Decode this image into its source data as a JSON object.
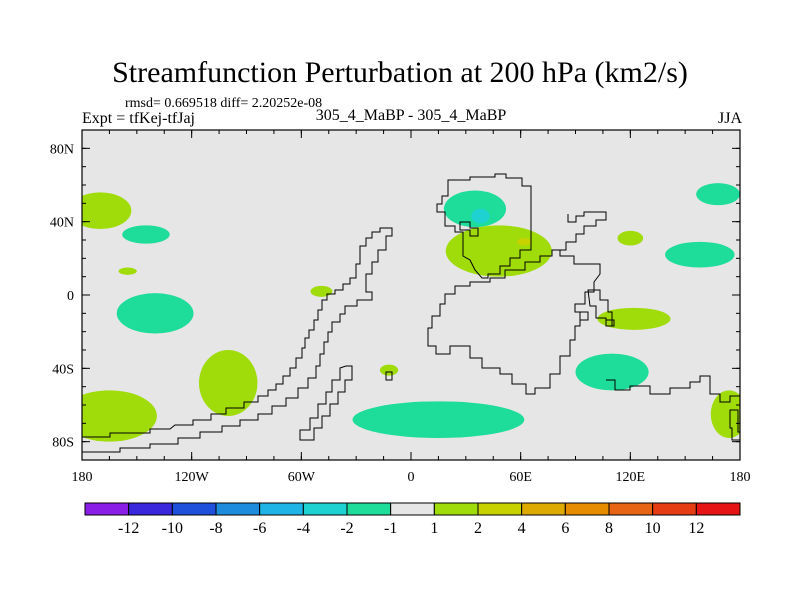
{
  "header": {
    "title": "Streamfunction Perturbation at 200 hPa (km2/s)",
    "stats": "rmsd= 0.669518 diff= 2.20252e-08",
    "left_label": "Expt = tfKej-tfJaj",
    "center_label": "305_4_MaBP - 305_4_MaBP",
    "right_label": "JJA"
  },
  "chart_data": {
    "type": "heatmap",
    "xlim": [
      -180,
      180
    ],
    "ylim": [
      -90,
      90
    ],
    "x_ticks": [
      -180,
      -120,
      -60,
      0,
      60,
      120,
      180
    ],
    "x_tick_labels": [
      "180",
      "120W",
      "60W",
      "0",
      "60E",
      "120E",
      "180"
    ],
    "y_ticks": [
      80,
      40,
      0,
      -40,
      -80
    ],
    "y_tick_labels": [
      "80N",
      "40N",
      "0",
      "40S",
      "80S"
    ],
    "background_color": "#e6e6e6",
    "colorbar": {
      "colors": [
        "#8a1ee6",
        "#3c28dc",
        "#1e50dc",
        "#1e8cdc",
        "#1eb4e6",
        "#1ed2d2",
        "#1edc9a",
        "#e6e6e6",
        "#a0dc0a",
        "#c8d200",
        "#dcaa00",
        "#e68c00",
        "#e66414",
        "#e63c14",
        "#e61414"
      ],
      "labels": [
        "-12",
        "-10",
        "-8",
        "-6",
        "-4",
        "-2",
        "-1",
        "1",
        "2",
        "4",
        "6",
        "8",
        "10",
        "12"
      ]
    },
    "anomalies": [
      {
        "lon": -170,
        "lat": 46,
        "rx": 17,
        "ry": 10,
        "value": 2
      },
      {
        "lon": -145,
        "lat": 33,
        "rx": 13,
        "ry": 5,
        "value": -1
      },
      {
        "lon": -155,
        "lat": 13,
        "rx": 5,
        "ry": 2,
        "value": 2
      },
      {
        "lon": -140,
        "lat": -10,
        "rx": 21,
        "ry": 11,
        "value": -1
      },
      {
        "lon": -100,
        "lat": -48,
        "rx": 16,
        "ry": 18,
        "value": 2
      },
      {
        "lon": -49,
        "lat": 2,
        "rx": 6,
        "ry": 3,
        "value": 2
      },
      {
        "lon": -12,
        "lat": -41,
        "rx": 5,
        "ry": 3,
        "value": 2
      },
      {
        "lon": 35,
        "lat": 47,
        "rx": 17,
        "ry": 10,
        "value": -1
      },
      {
        "lon": 38,
        "lat": 43,
        "rx": 5,
        "ry": 4,
        "value": -2
      },
      {
        "lon": 48,
        "lat": 24,
        "rx": 29,
        "ry": 14,
        "value": 2
      },
      {
        "lon": 62,
        "lat": 29,
        "rx": 4,
        "ry": 2,
        "value": 4
      },
      {
        "lon": 15,
        "lat": -68,
        "rx": 47,
        "ry": 10,
        "value": -1
      },
      {
        "lon": 168,
        "lat": 55,
        "rx": 12,
        "ry": 6,
        "value": -1
      },
      {
        "lon": 120,
        "lat": 31,
        "rx": 7,
        "ry": 4,
        "value": 2
      },
      {
        "lon": 158,
        "lat": 22,
        "rx": 19,
        "ry": 7,
        "value": -1
      },
      {
        "lon": 122,
        "lat": -13,
        "rx": 20,
        "ry": 6,
        "value": 2
      },
      {
        "lon": 110,
        "lat": -42,
        "rx": 20,
        "ry": 10,
        "value": -1
      },
      {
        "lon": -165,
        "lat": -66,
        "rx": 26,
        "ry": 14,
        "value": 2
      },
      {
        "lon": 174,
        "lat": -65,
        "rx": 10,
        "ry": 13,
        "value": 2
      }
    ]
  }
}
